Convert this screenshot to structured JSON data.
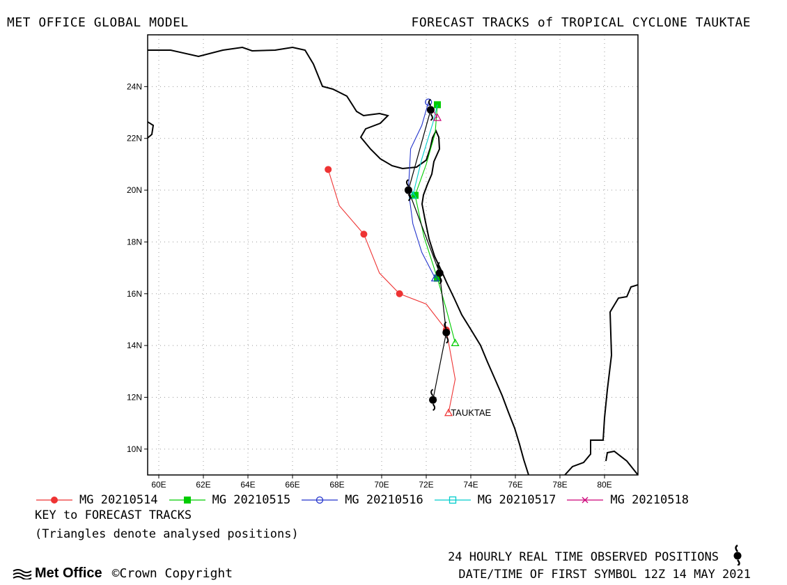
{
  "header": {
    "left_title": "MET OFFICE GLOBAL MODEL",
    "right_title": "FORECAST TRACKS of TROPICAL CYCLONE TAUKTAE"
  },
  "map": {
    "lon_range": [
      59.5,
      81.5
    ],
    "lat_range": [
      9,
      26
    ],
    "x_ticks": [
      "60E",
      "62E",
      "64E",
      "66E",
      "68E",
      "70E",
      "72E",
      "74E",
      "76E",
      "78E",
      "80E"
    ],
    "y_ticks": [
      "24N",
      "22N",
      "20N",
      "18N",
      "16N",
      "14N",
      "12N",
      "10N"
    ],
    "storm_label": "TAUKTAE"
  },
  "tracks": [
    {
      "name": "MG 20210514",
      "color": "#ee3333",
      "marker": "filled-circle",
      "analysed": [
        73.0,
        11.4
      ],
      "points": [
        [
          73.0,
          11.4
        ],
        [
          73.3,
          12.7
        ],
        [
          72.9,
          14.6
        ],
        [
          72.0,
          15.6
        ],
        [
          70.8,
          16.0
        ],
        [
          69.9,
          16.8
        ],
        [
          69.2,
          18.3
        ],
        [
          68.1,
          19.4
        ],
        [
          67.6,
          20.8
        ]
      ]
    },
    {
      "name": "MG 20210515",
      "color": "#00cc00",
      "marker": "filled-square",
      "analysed": [
        73.3,
        14.1
      ],
      "points": [
        [
          73.3,
          14.1
        ],
        [
          72.9,
          15.4
        ],
        [
          72.5,
          16.6
        ],
        [
          71.9,
          18.2
        ],
        [
          71.5,
          19.8
        ],
        [
          72.0,
          21.0
        ],
        [
          72.4,
          22.2
        ],
        [
          72.5,
          23.3
        ]
      ]
    },
    {
      "name": "MG 20210516",
      "color": "#2233cc",
      "marker": "open-circle",
      "analysed": [
        72.4,
        16.6
      ],
      "points": [
        [
          72.4,
          16.6
        ],
        [
          71.8,
          17.6
        ],
        [
          71.4,
          18.7
        ],
        [
          71.2,
          20.0
        ],
        [
          71.3,
          21.6
        ],
        [
          71.8,
          22.5
        ],
        [
          72.1,
          23.4
        ]
      ]
    },
    {
      "name": "MG 20210517",
      "color": "#00cccc",
      "marker": "open-square",
      "analysed": [
        71.4,
        19.8
      ],
      "points": [
        [
          71.4,
          19.8
        ],
        [
          71.8,
          21.2
        ],
        [
          72.3,
          22.6
        ],
        [
          72.5,
          23.3
        ]
      ]
    },
    {
      "name": "MG 20210518",
      "color": "#cc0077",
      "marker": "cross",
      "analysed": [
        72.5,
        22.8
      ],
      "points": [
        [
          72.5,
          22.8
        ],
        [
          72.3,
          23.1
        ]
      ]
    }
  ],
  "observed": {
    "points": [
      [
        72.3,
        11.9
      ],
      [
        72.9,
        14.5
      ],
      [
        72.6,
        16.8
      ],
      [
        71.2,
        20.0
      ],
      [
        72.2,
        23.1
      ]
    ]
  },
  "legend": {
    "key_title": "KEY to FORECAST TRACKS",
    "key_note": "(Triangles denote analysed positions)"
  },
  "footer": {
    "observed_label": "24 HOURLY REAL TIME OBSERVED POSITIONS",
    "datetime_label": "DATE/TIME OF FIRST SYMBOL 12Z 14 MAY 2021",
    "logo_text": "Met Office",
    "copyright": "©Crown Copyright"
  }
}
